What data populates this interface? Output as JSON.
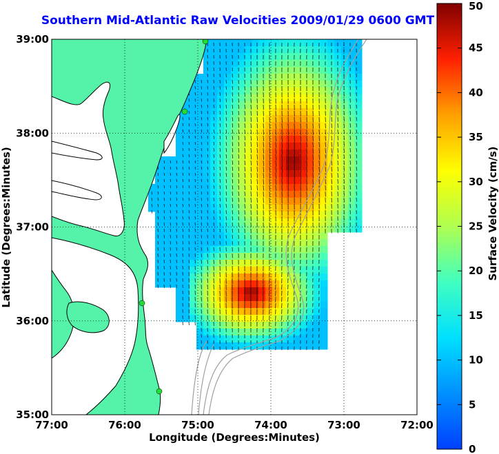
{
  "title": "Southern Mid-Atlantic Raw Velocities 2009/01/29 0600 GMT",
  "chart_data": {
    "type": "heatmap",
    "xlabel": "Longitude (Degrees:Minutes)",
    "ylabel": "Latitude (Degrees:Minutes)",
    "xlim": [
      -77,
      -72
    ],
    "ylim": [
      35,
      39
    ],
    "x_tick_labels": [
      "77:00",
      "76:00",
      "75:00",
      "74:00",
      "73:00",
      "72:00"
    ],
    "y_tick_labels": [
      "39:00",
      "38:00",
      "37:00",
      "36:00",
      "35:00"
    ],
    "grid": true,
    "colorbar": {
      "label": "Surface Velocity (cm/s)",
      "range": [
        0,
        50
      ],
      "tick_labels": [
        "50",
        "45",
        "40",
        "35",
        "30",
        "25",
        "20",
        "15",
        "10",
        "5",
        "0"
      ]
    },
    "colors": {
      "land": "#55f2aa",
      "coastline": "#000000",
      "bathymetry": "#a0a0a0",
      "title": "#0000ff",
      "station": "#22dd33"
    }
  }
}
